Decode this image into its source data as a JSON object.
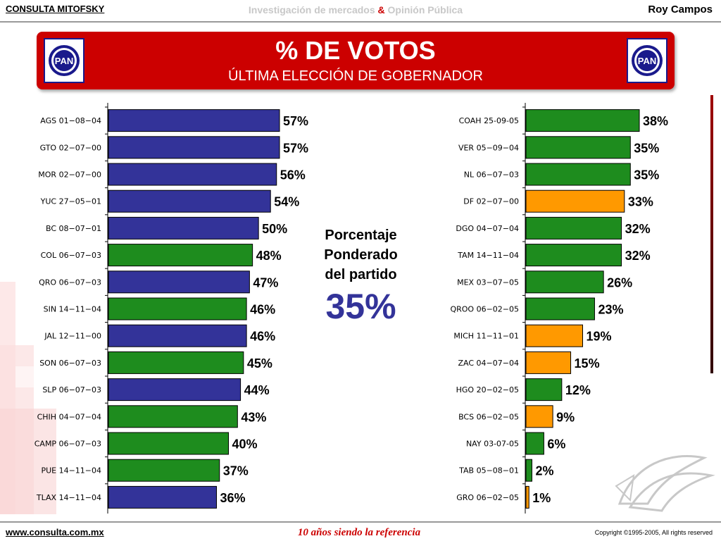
{
  "header": {
    "left": "CONSULTA MITOFSKY",
    "center_a": "Investigación de mercados",
    "center_amp": "&",
    "center_b": "Opinión Pública",
    "right": "Roy Campos"
  },
  "banner": {
    "title": "% DE VOTOS",
    "subtitle": "ÚLTIMA ELECCIÓN DE GOBERNADOR",
    "logo_text": "PAN"
  },
  "summary": {
    "line1": "Porcentaje",
    "line2": "Ponderado",
    "line3": "del partido",
    "value": "35%"
  },
  "footer": {
    "url": "www.consulta.com.mx",
    "tagline": "10 años siendo la referencia",
    "copyright": "Copyright ©1995-2005, All rights reserved"
  },
  "colors": {
    "blue": "#333399",
    "green": "#1e8c1e",
    "orange": "#ff9900",
    "banner": "#cc0000"
  },
  "chart_data": [
    {
      "type": "bar",
      "orientation": "horizontal",
      "categories": [
        "AGS 01−08−04",
        "GTO 02−07−00",
        "MOR 02−07−00",
        "YUC 27−05−01",
        "BC 08−07−01",
        "COL 06−07−03",
        "QRO 06−07−03",
        "SIN 14−11−04",
        "JAL 12−11−00",
        "SON 06−07−03",
        "SLP 06−07−03",
        "CHIH 04−07−04",
        "CAMP 06−07−03",
        "PUE 14−11−04",
        "TLAX 14−11−04"
      ],
      "values": [
        57,
        57,
        56,
        54,
        50,
        48,
        47,
        46,
        46,
        45,
        44,
        43,
        40,
        37,
        36
      ],
      "labels": [
        "57%",
        "57%",
        "56%",
        "54%",
        "50%",
        "48%",
        "47%",
        "46%",
        "46%",
        "45%",
        "44%",
        "43%",
        "40%",
        "37%",
        "36%"
      ],
      "colors": [
        "blue",
        "blue",
        "blue",
        "blue",
        "blue",
        "green",
        "blue",
        "green",
        "blue",
        "green",
        "blue",
        "green",
        "green",
        "green",
        "blue"
      ],
      "xlim": [
        0,
        57
      ]
    },
    {
      "type": "bar",
      "orientation": "horizontal",
      "categories": [
        "COAH 25-09-05",
        "VER 05−09−04",
        "NL 06−07−03",
        "DF 02−07−00",
        "DGO 04−07−04",
        "TAM 14−11−04",
        "MEX 03−07−05",
        "QROO 06−02−05",
        "MICH 11−11−01",
        "ZAC 04−07−04",
        "HGO 20−02−05",
        "BCS 06−02−05",
        "NAY 03-07-05",
        "TAB 05−08−01",
        "GRO 06−02−05"
      ],
      "values": [
        38,
        35,
        35,
        33,
        32,
        32,
        26,
        23,
        19,
        15,
        12,
        9,
        6,
        2,
        1
      ],
      "labels": [
        "38%",
        "35%",
        "35%",
        "33%",
        "32%",
        "32%",
        "26%",
        "23%",
        "19%",
        "15%",
        "12%",
        "9%",
        "6%",
        "2%",
        "1%"
      ],
      "colors": [
        "green",
        "green",
        "green",
        "orange",
        "green",
        "green",
        "green",
        "green",
        "orange",
        "orange",
        "green",
        "orange",
        "green",
        "green",
        "orange"
      ],
      "xlim": [
        0,
        38
      ]
    }
  ]
}
